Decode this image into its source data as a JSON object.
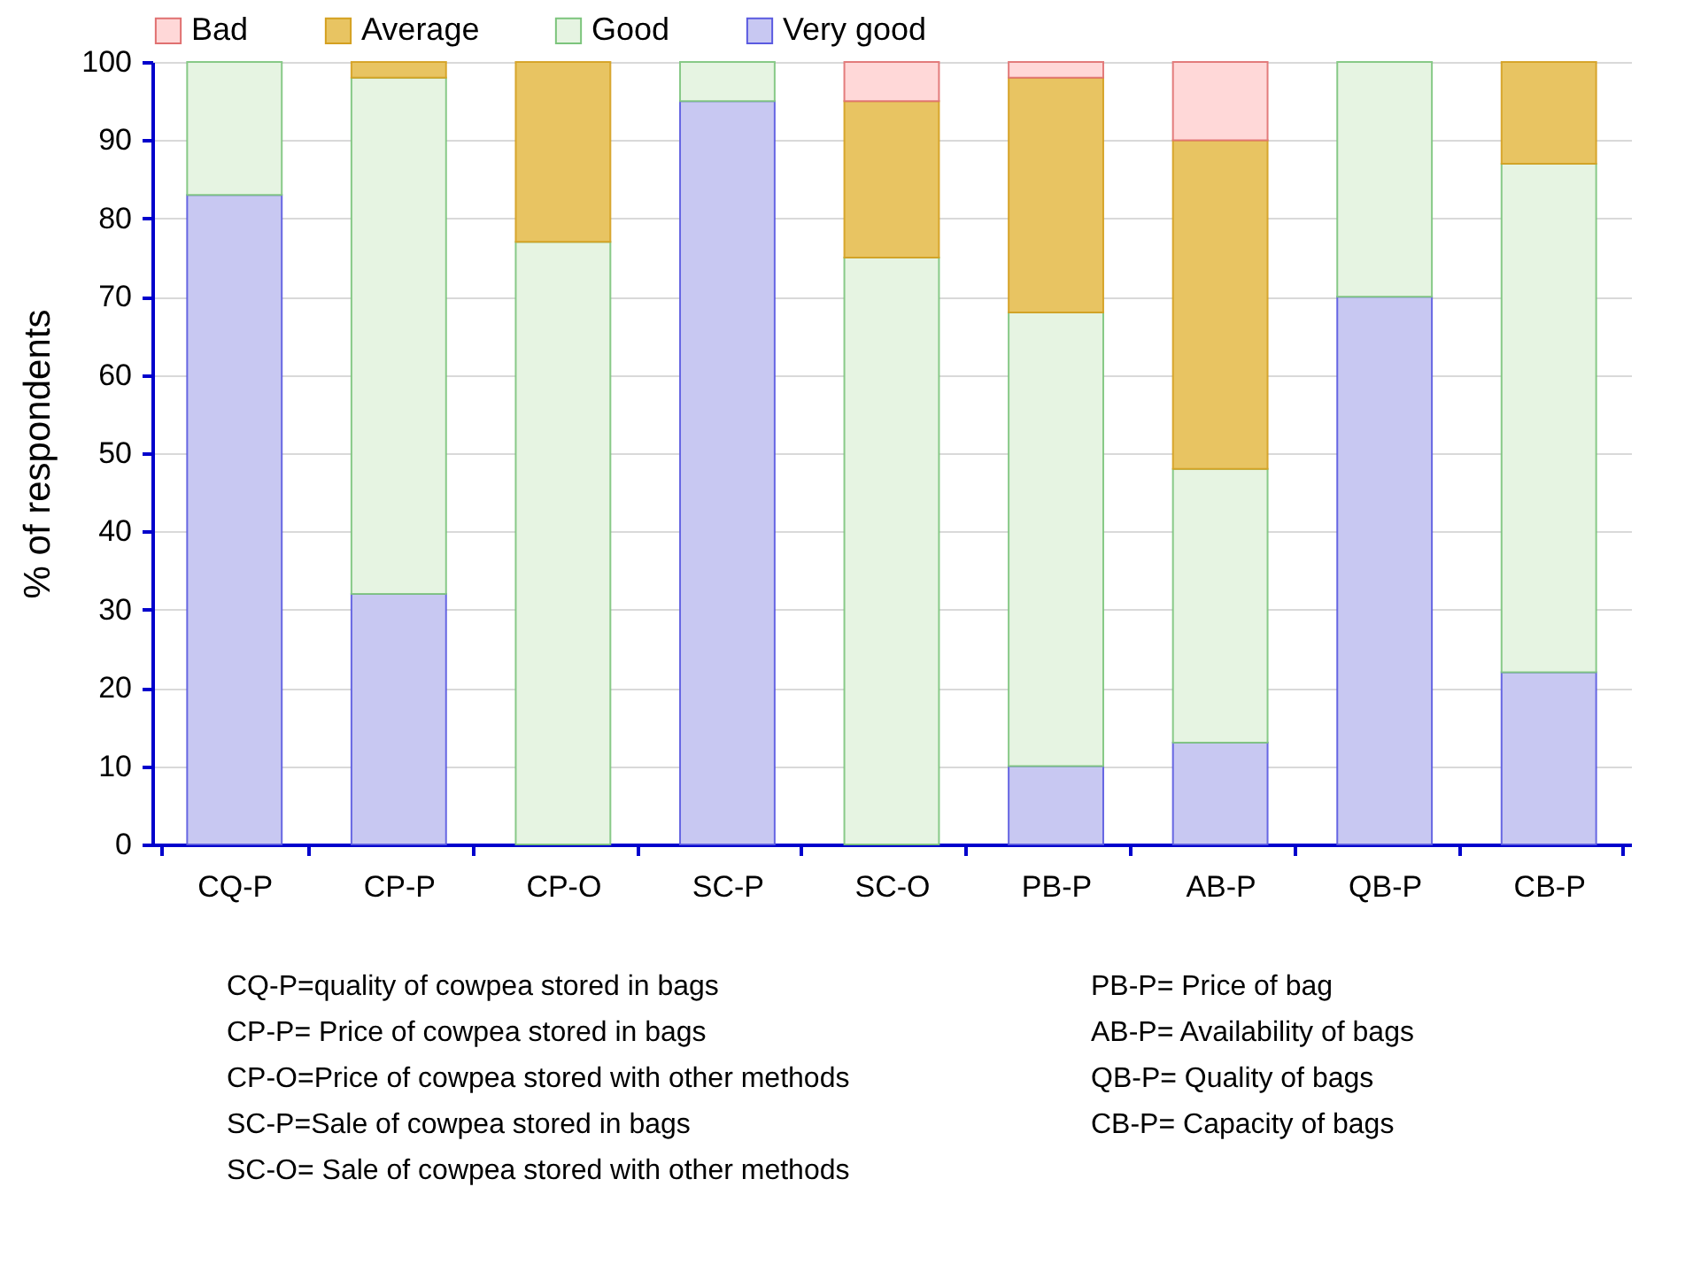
{
  "chart_data": {
    "type": "bar",
    "stacked": true,
    "ylabel": "% of respondents",
    "categories": [
      "CQ-P",
      "CP-P",
      "CP-O",
      "SC-P",
      "SC-O",
      "PB-P",
      "AB-P",
      "QB-P",
      "CB-P"
    ],
    "series": [
      {
        "name": "Very good",
        "color": "#c8c8f2",
        "values": [
          83,
          32,
          0,
          95,
          0,
          10,
          13,
          70,
          22
        ]
      },
      {
        "name": "Good",
        "color": "#e6f4e2",
        "values": [
          17,
          66,
          77,
          5,
          75,
          58,
          35,
          30,
          65
        ]
      },
      {
        "name": "Average",
        "color": "#e8c462",
        "values": [
          0,
          2,
          23,
          0,
          20,
          30,
          42,
          0,
          13
        ]
      },
      {
        "name": "Bad",
        "color": "#ffd8d8",
        "values": [
          0,
          0,
          0,
          0,
          5,
          2,
          10,
          0,
          0
        ]
      }
    ],
    "ylim": [
      0,
      100
    ],
    "yticks": [
      0,
      10,
      20,
      30,
      40,
      50,
      60,
      70,
      80,
      90,
      100
    ],
    "grid": "y",
    "legend": "top",
    "annotations": [
      "CQ-P=quality of cowpea stored in bags",
      "CP-P= Price of cowpea stored in bags",
      "CP-O=Price of cowpea stored with other methods",
      "SC-P=Sale of cowpea stored in bags",
      "SC-O= Sale of cowpea stored with other methods",
      "PB-P= Price of bag",
      "AB-P= Availability of bags",
      "QB-P= Quality of bags",
      "CB-P= Capacity of bags"
    ]
  }
}
